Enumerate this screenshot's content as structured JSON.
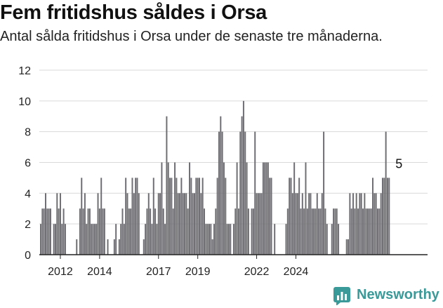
{
  "title": "Fem fritidshus såldes i Orsa",
  "subtitle": "Antal sålda fritidshus i Orsa under de senaste tre månaderna.",
  "brand": {
    "name": "Newsworthy",
    "icon": "newsworthy-chart-icon",
    "color": "#3a9a99"
  },
  "colors": {
    "bar": "#6f6e73",
    "highlight": "#2e9c96",
    "grid": "#d9d9d9",
    "axis": "#222222"
  },
  "chart_data": {
    "type": "bar",
    "title": "Fem fritidshus såldes i Orsa",
    "xlabel": "",
    "ylabel": "",
    "ylim": [
      0,
      12
    ],
    "yticks": [
      0,
      2,
      4,
      6,
      8,
      10,
      12
    ],
    "grid": true,
    "x_start": "2011-01",
    "x_step": "month",
    "xticks": [
      {
        "label": "2012",
        "x": "2012-01"
      },
      {
        "label": "2014",
        "x": "2014-01"
      },
      {
        "label": "2017",
        "x": "2017-01"
      },
      {
        "label": "2019",
        "x": "2019-01"
      },
      {
        "label": "2022",
        "x": "2022-01"
      },
      {
        "label": "2024",
        "x": "2024-01"
      }
    ],
    "values": [
      2,
      3,
      3,
      4,
      3,
      3,
      3,
      0,
      2,
      2,
      4,
      3,
      4,
      2,
      3,
      2,
      0,
      0,
      0,
      0,
      0,
      0,
      1,
      0,
      3,
      5,
      3,
      4,
      2,
      3,
      3,
      2,
      2,
      2,
      2,
      4,
      3,
      5,
      3,
      3,
      0,
      1,
      0,
      0,
      0,
      1,
      2,
      0,
      1,
      2,
      3,
      2,
      5,
      4,
      3,
      3,
      5,
      4,
      5,
      5,
      4,
      0,
      0,
      1,
      2,
      3,
      4,
      3,
      2,
      5,
      3,
      2,
      4,
      4,
      6,
      3,
      2,
      9,
      6,
      5,
      5,
      3,
      6,
      5,
      4,
      4,
      5,
      4,
      4,
      4,
      3,
      6,
      5,
      4,
      4,
      5,
      5,
      5,
      4,
      5,
      3,
      2,
      2,
      2,
      2,
      1,
      2,
      3,
      5,
      8,
      9,
      8,
      6,
      5,
      2,
      2,
      2,
      0,
      2,
      3,
      6,
      3,
      8,
      9,
      10,
      8,
      6,
      3,
      0,
      3,
      3,
      8,
      4,
      4,
      4,
      4,
      6,
      6,
      6,
      6,
      5,
      5,
      0,
      2,
      0,
      0,
      0,
      0,
      0,
      0,
      2,
      3,
      5,
      5,
      4,
      6,
      4,
      4,
      5,
      3,
      4,
      3,
      6,
      3,
      4,
      4,
      3,
      3,
      3,
      4,
      3,
      3,
      4,
      8,
      3,
      2,
      0,
      0,
      2,
      3,
      3,
      3,
      2,
      0,
      0,
      0,
      0,
      1,
      1,
      4,
      3,
      4,
      3,
      4,
      3,
      4,
      4,
      3,
      4,
      3,
      3,
      3,
      3,
      5,
      4,
      4,
      3,
      3,
      4,
      5,
      5,
      8,
      5,
      5
    ],
    "highlight": {
      "index": 219,
      "value": 5,
      "label": "5"
    }
  }
}
